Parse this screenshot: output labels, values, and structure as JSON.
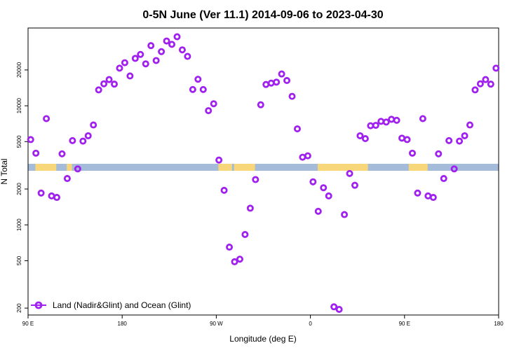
{
  "chart_data": {
    "type": "scatter",
    "title": "0-5N June (Ver 11.1)   2014-09-06 to 2023-04-30",
    "xlabel": "Longitude (deg E)",
    "ylabel": "N Total",
    "x_tick_positions": [
      90,
      180,
      270,
      360,
      450,
      540
    ],
    "x_tick_labels": [
      "90 E",
      "180",
      "90 W",
      "0",
      "90 E",
      "180"
    ],
    "xlim": [
      90,
      540
    ],
    "y_scale": "log",
    "y_ticks": [
      200,
      500,
      1000,
      2000,
      5000,
      10000,
      20000
    ],
    "y_tick_labels": [
      "200",
      "500",
      "1000",
      "2000",
      "5000",
      "10000",
      "20000"
    ],
    "ylim": [
      175,
      45000
    ],
    "legend": {
      "position": "bottom-left",
      "label": "Land (Nadir&Glint) and Ocean (Glint)"
    },
    "marker_color": "#a020f0",
    "land_ocean_strip": {
      "ocean_color": "#a4bcd9",
      "land_color": "#f7d77a",
      "land_segments": [
        [
          97,
          117
        ],
        [
          127,
          132
        ],
        [
          272,
          285
        ],
        [
          287,
          307
        ],
        [
          101,
          105
        ],
        [
          102,
          112
        ],
        [
          111,
          112
        ],
        [
          0,
          0
        ],
        [
          367,
          400
        ],
        [
          394,
          402
        ],
        [
          392,
          404
        ],
        [
          386,
          415
        ],
        [
          454,
          472
        ],
        [
          460,
          472
        ],
        [
          469,
          472
        ],
        [
          0,
          0
        ]
      ]
    },
    "series": [
      {
        "name": "Land (Nadir&Glint) and Ocean (Glint)",
        "points": [
          [
            92.5,
            5200
          ],
          [
            97.5,
            4000
          ],
          [
            102.5,
            1850
          ],
          [
            107.5,
            7800
          ],
          [
            112.5,
            1750
          ],
          [
            117.5,
            1700
          ],
          [
            122.5,
            3950
          ],
          [
            127.5,
            2450
          ],
          [
            132.5,
            5100
          ],
          [
            137.5,
            2950
          ],
          [
            142.5,
            5050
          ],
          [
            147.5,
            5600
          ],
          [
            152.5,
            6900
          ],
          [
            157.5,
            13600
          ],
          [
            162.5,
            15300
          ],
          [
            167.5,
            16600
          ],
          [
            172.5,
            15200
          ],
          [
            177.5,
            20700
          ],
          [
            182.5,
            23000
          ],
          [
            187.5,
            17800
          ],
          [
            192.5,
            25000
          ],
          [
            197.5,
            27000
          ],
          [
            202.5,
            22500
          ],
          [
            207.5,
            32000
          ],
          [
            212.5,
            24000
          ],
          [
            217.5,
            28500
          ],
          [
            222.5,
            35000
          ],
          [
            227.5,
            32800
          ],
          [
            232.5,
            38000
          ],
          [
            237.5,
            29500
          ],
          [
            242.5,
            26000
          ],
          [
            247.5,
            13700
          ],
          [
            252.5,
            16700
          ],
          [
            257.5,
            13700
          ],
          [
            262.5,
            9100
          ],
          [
            267.5,
            10400
          ],
          [
            272.5,
            3500
          ],
          [
            277.5,
            1950
          ],
          [
            282.5,
            650
          ],
          [
            287.5,
            490
          ],
          [
            292.5,
            515
          ],
          [
            297.5,
            830
          ],
          [
            302.5,
            1380
          ],
          [
            307.5,
            2400
          ],
          [
            312.5,
            10200
          ],
          [
            317.5,
            15100
          ],
          [
            322.5,
            15500
          ],
          [
            327.5,
            15800
          ],
          [
            332.5,
            18500
          ],
          [
            337.5,
            16300
          ],
          [
            342.5,
            12000
          ],
          [
            347.5,
            6400
          ],
          [
            352.5,
            3700
          ],
          [
            357.5,
            3800
          ],
          [
            362.5,
            2300
          ],
          [
            367.5,
            1300
          ],
          [
            372.5,
            2050
          ],
          [
            377.5,
            1750
          ],
          [
            382.5,
            205
          ],
          [
            387.5,
            195
          ],
          [
            392.5,
            1220
          ],
          [
            397.5,
            2700
          ],
          [
            402.5,
            2150
          ],
          [
            407.5,
            5600
          ],
          [
            412.5,
            5300
          ],
          [
            417.5,
            6800
          ],
          [
            422.5,
            6850
          ],
          [
            427.5,
            7400
          ],
          [
            432.5,
            7300
          ],
          [
            437.5,
            7700
          ],
          [
            442.5,
            7550
          ],
          [
            447.5,
            5350
          ],
          [
            452.5,
            5200
          ],
          [
            457.5,
            4000
          ],
          [
            462.5,
            1850
          ],
          [
            467.5,
            7800
          ],
          [
            472.5,
            1750
          ],
          [
            477.5,
            1700
          ],
          [
            482.5,
            3950
          ],
          [
            487.5,
            2450
          ],
          [
            492.5,
            5100
          ],
          [
            497.5,
            2950
          ],
          [
            502.5,
            5050
          ],
          [
            507.5,
            5600
          ],
          [
            512.5,
            6900
          ],
          [
            517.5,
            13600
          ],
          [
            522.5,
            15300
          ],
          [
            527.5,
            16600
          ],
          [
            532.5,
            15200
          ],
          [
            537.5,
            20700
          ]
        ]
      }
    ]
  }
}
